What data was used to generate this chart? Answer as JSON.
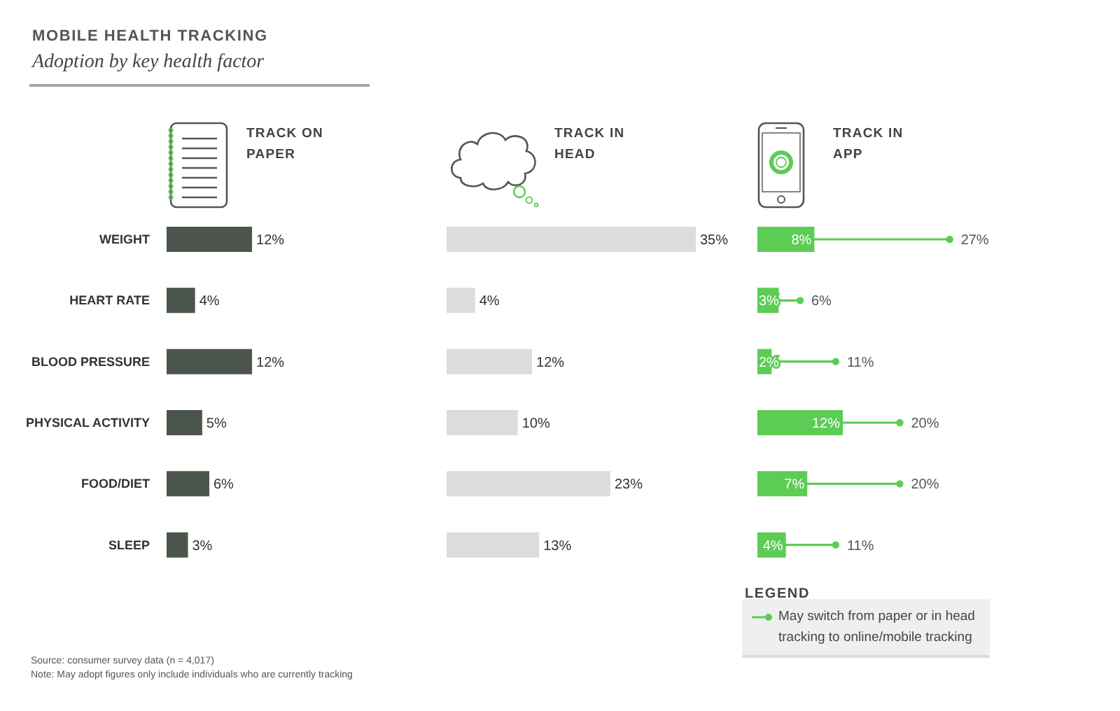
{
  "chart_data": [
    {
      "type": "other",
      "title": "MOBILE HEALTH TRACKING",
      "subtitle": "Adoption by key health factor",
      "annotations": [
        "Source: consumer survey data (n = 4,017)",
        "Note: May adopt figures only include individuals who are currently tracking"
      ]
    },
    {
      "type": "bar",
      "orientation": "horizontal",
      "title": "TRACK ON PAPER",
      "categories": [
        "WEIGHT",
        "HEART RATE",
        "BLOOD PRESSURE",
        "PHYSICAL ACTIVITY",
        "FOOD/DIET",
        "SLEEP"
      ],
      "series": [
        {
          "color": "#4b554c",
          "values": [
            12,
            4,
            12,
            5,
            6,
            3
          ],
          "value_labels": [
            "12%",
            "4%",
            "12%",
            "5%",
            "6%",
            "3%"
          ]
        }
      ],
      "tick_labels": "y"
    },
    {
      "type": "bar",
      "orientation": "horizontal",
      "title": "TRACK IN HEAD",
      "categories": [
        null,
        null,
        null,
        null,
        null,
        null
      ],
      "series": [
        {
          "color": "#dcdcdc",
          "values": [
            35,
            4,
            12,
            10,
            23,
            13
          ],
          "value_labels": [
            "35%",
            "4%",
            "12%",
            "10%",
            "23%",
            "13%"
          ]
        }
      ],
      "tick_labels": false
    },
    {
      "type": "bar",
      "orientation": "horizontal",
      "title": "TRACK IN APP",
      "categories": [
        null,
        null,
        null,
        null,
        null,
        null
      ],
      "series": [
        {
          "color": "#5ccc55",
          "values": [
            8,
            3,
            2,
            12,
            7,
            4
          ],
          "value_labels": [
            "8%",
            "3%",
            "2%",
            "12%",
            "7%",
            "4%"
          ]
        },
        {
          "type": "lollipop",
          "name": "May switch from paper or in head tracking to online/mobile tracking",
          "color": "#5ccc55",
          "values": [
            27,
            6,
            11,
            20,
            20,
            11
          ],
          "value_labels": [
            "27%",
            "6%",
            "11%",
            "20%",
            "20%",
            "11%"
          ]
        }
      ],
      "tick_labels": false,
      "legend": "bottom left",
      "legend_title": "LEGEND"
    }
  ]
}
